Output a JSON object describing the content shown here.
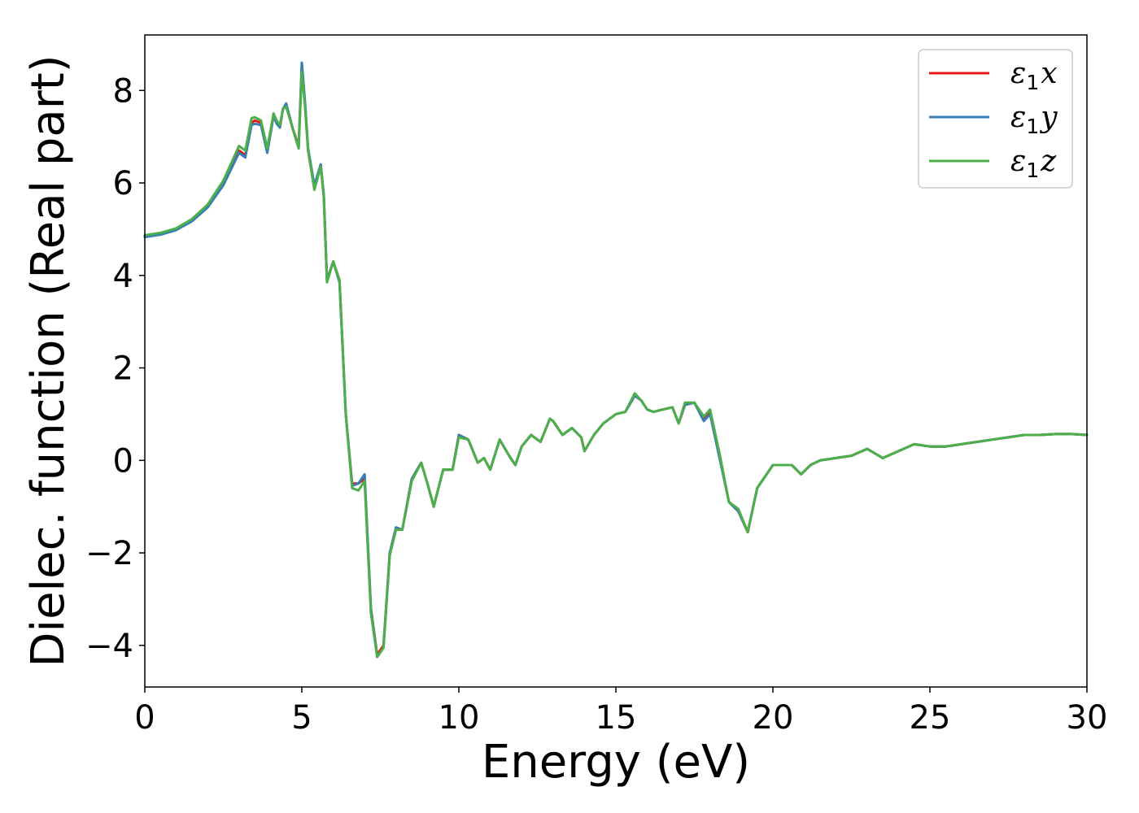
{
  "chart_data": {
    "type": "line",
    "title": "",
    "xlabel": "Energy (eV)",
    "ylabel": "Dielec. function (Real part)",
    "xlim": [
      0,
      30
    ],
    "ylim": [
      -4.9,
      9.2
    ],
    "xticks": [
      0,
      5,
      10,
      15,
      20,
      25,
      30
    ],
    "xtick_labels": [
      "0",
      "5",
      "10",
      "15",
      "20",
      "25",
      "30"
    ],
    "yticks": [
      -4,
      -2,
      0,
      2,
      4,
      6,
      8
    ],
    "ytick_labels": [
      "−4",
      "−2",
      "0",
      "2",
      "4",
      "6",
      "8"
    ],
    "grid": false,
    "legend_position": "top-right",
    "series": [
      {
        "name": "ε1x",
        "legend_base": "ε",
        "legend_sub": "1",
        "legend_var": "x",
        "color": "#e41a1c",
        "x": [
          0,
          0.5,
          1.0,
          1.5,
          2.0,
          2.5,
          3.0,
          3.2,
          3.4,
          3.5,
          3.7,
          3.9,
          4.1,
          4.2,
          4.3,
          4.4,
          4.5,
          4.7,
          4.9,
          5.0,
          5.1,
          5.2,
          5.4,
          5.6,
          5.7,
          5.8,
          6.0,
          6.2,
          6.4,
          6.6,
          6.8,
          7.0,
          7.2,
          7.4,
          7.6,
          7.8,
          8.0,
          8.2,
          8.5,
          8.8,
          9.0,
          9.2,
          9.5,
          9.8,
          10.0,
          10.3,
          10.6,
          10.8,
          11.0,
          11.3,
          11.6,
          11.8,
          12.0,
          12.3,
          12.6,
          12.9,
          13.0,
          13.3,
          13.6,
          13.9,
          14.0,
          14.3,
          14.6,
          15.0,
          15.3,
          15.6,
          15.8,
          16.0,
          16.2,
          16.5,
          16.8,
          17.0,
          17.2,
          17.5,
          17.8,
          18.0,
          18.3,
          18.6,
          18.9,
          19.2,
          19.5,
          19.8,
          20.0,
          20.3,
          20.6,
          20.9,
          21.2,
          21.5,
          22.0,
          22.5,
          23.0,
          23.5,
          24.0,
          24.5,
          25.0,
          25.5,
          26.0,
          26.5,
          27.0,
          27.5,
          28.0,
          28.5,
          29.0,
          29.5,
          30.0
        ],
        "y": [
          4.85,
          4.9,
          5.0,
          5.2,
          5.5,
          6.0,
          6.7,
          6.6,
          7.3,
          7.35,
          7.3,
          6.7,
          7.5,
          7.3,
          7.2,
          7.6,
          7.7,
          7.2,
          6.8,
          8.55,
          7.7,
          6.7,
          5.9,
          6.4,
          5.7,
          3.9,
          4.3,
          3.9,
          1.0,
          -0.5,
          -0.5,
          -0.4,
          -3.2,
          -4.2,
          -4.0,
          -2.0,
          -1.45,
          -1.5,
          -0.4,
          -0.05,
          -0.5,
          -1.0,
          -0.2,
          -0.2,
          0.55,
          0.45,
          -0.05,
          0.05,
          -0.2,
          0.45,
          0.1,
          -0.1,
          0.3,
          0.55,
          0.4,
          0.9,
          0.85,
          0.55,
          0.7,
          0.5,
          0.2,
          0.55,
          0.8,
          1.0,
          1.05,
          1.4,
          1.3,
          1.1,
          1.05,
          1.1,
          1.15,
          0.8,
          1.2,
          1.25,
          0.9,
          1.05,
          0.1,
          -0.9,
          -1.1,
          -1.55,
          -0.6,
          -0.3,
          -0.1,
          -0.1,
          -0.1,
          -0.3,
          -0.1,
          0.0,
          0.05,
          0.1,
          0.25,
          0.05,
          0.2,
          0.35,
          0.3,
          0.3,
          0.35,
          0.4,
          0.45,
          0.5,
          0.55,
          0.55,
          0.57,
          0.57,
          0.55
        ]
      },
      {
        "name": "ε1y",
        "legend_base": "ε",
        "legend_sub": "1",
        "legend_var": "y",
        "color": "#377eb8",
        "x": [
          0,
          0.5,
          1.0,
          1.5,
          2.0,
          2.5,
          3.0,
          3.2,
          3.4,
          3.5,
          3.7,
          3.9,
          4.1,
          4.2,
          4.3,
          4.4,
          4.5,
          4.7,
          4.9,
          5.0,
          5.1,
          5.2,
          5.4,
          5.6,
          5.7,
          5.8,
          6.0,
          6.2,
          6.4,
          6.6,
          6.8,
          7.0,
          7.2,
          7.4,
          7.6,
          7.8,
          8.0,
          8.2,
          8.5,
          8.8,
          9.0,
          9.2,
          9.5,
          9.8,
          10.0,
          10.3,
          10.6,
          10.8,
          11.0,
          11.3,
          11.6,
          11.8,
          12.0,
          12.3,
          12.6,
          12.9,
          13.0,
          13.3,
          13.6,
          13.9,
          14.0,
          14.3,
          14.6,
          15.0,
          15.3,
          15.6,
          15.8,
          16.0,
          16.2,
          16.5,
          16.8,
          17.0,
          17.2,
          17.5,
          17.8,
          18.0,
          18.3,
          18.6,
          18.9,
          19.2,
          19.5,
          19.8,
          20.0,
          20.3,
          20.6,
          20.9,
          21.2,
          21.5,
          22.0,
          22.5,
          23.0,
          23.5,
          24.0,
          24.5,
          25.0,
          25.5,
          26.0,
          26.5,
          27.0,
          27.5,
          28.0,
          28.5,
          29.0,
          29.5,
          30.0
        ],
        "y": [
          4.83,
          4.88,
          4.98,
          5.17,
          5.47,
          5.95,
          6.65,
          6.55,
          7.25,
          7.28,
          7.25,
          6.65,
          7.45,
          7.28,
          7.2,
          7.6,
          7.72,
          7.2,
          6.75,
          8.6,
          7.75,
          6.75,
          5.95,
          6.4,
          5.75,
          3.9,
          4.3,
          3.85,
          1.0,
          -0.55,
          -0.5,
          -0.3,
          -3.2,
          -4.25,
          -4.05,
          -2.0,
          -1.45,
          -1.5,
          -0.4,
          -0.05,
          -0.5,
          -1.0,
          -0.2,
          -0.2,
          0.55,
          0.45,
          -0.05,
          0.05,
          -0.2,
          0.45,
          0.1,
          -0.1,
          0.3,
          0.55,
          0.4,
          0.9,
          0.85,
          0.55,
          0.7,
          0.5,
          0.2,
          0.55,
          0.8,
          1.0,
          1.05,
          1.4,
          1.3,
          1.1,
          1.05,
          1.1,
          1.15,
          0.8,
          1.2,
          1.25,
          0.85,
          1.0,
          0.05,
          -0.9,
          -1.1,
          -1.55,
          -0.6,
          -0.3,
          -0.1,
          -0.1,
          -0.1,
          -0.3,
          -0.1,
          0.0,
          0.05,
          0.1,
          0.25,
          0.05,
          0.2,
          0.35,
          0.3,
          0.3,
          0.35,
          0.4,
          0.45,
          0.5,
          0.55,
          0.55,
          0.57,
          0.57,
          0.55
        ]
      },
      {
        "name": "ε1z",
        "legend_base": "ε",
        "legend_sub": "1",
        "legend_var": "z",
        "color": "#4daf4a",
        "x": [
          0,
          0.5,
          1.0,
          1.5,
          2.0,
          2.5,
          3.0,
          3.2,
          3.4,
          3.5,
          3.7,
          3.9,
          4.1,
          4.2,
          4.3,
          4.4,
          4.5,
          4.7,
          4.9,
          5.0,
          5.1,
          5.2,
          5.4,
          5.6,
          5.7,
          5.8,
          6.0,
          6.2,
          6.4,
          6.6,
          6.8,
          7.0,
          7.2,
          7.4,
          7.6,
          7.8,
          8.0,
          8.2,
          8.5,
          8.8,
          9.0,
          9.2,
          9.5,
          9.8,
          10.0,
          10.3,
          10.6,
          10.8,
          11.0,
          11.3,
          11.6,
          11.8,
          12.0,
          12.3,
          12.6,
          12.9,
          13.0,
          13.3,
          13.6,
          13.9,
          14.0,
          14.3,
          14.6,
          15.0,
          15.3,
          15.6,
          15.8,
          16.0,
          16.2,
          16.5,
          16.8,
          17.0,
          17.2,
          17.5,
          17.8,
          18.0,
          18.3,
          18.6,
          18.9,
          19.2,
          19.5,
          19.8,
          20.0,
          20.3,
          20.6,
          20.9,
          21.2,
          21.5,
          22.0,
          22.5,
          23.0,
          23.5,
          24.0,
          24.5,
          25.0,
          25.5,
          26.0,
          26.5,
          27.0,
          27.5,
          28.0,
          28.5,
          29.0,
          29.5,
          30.0
        ],
        "y": [
          4.87,
          4.92,
          5.02,
          5.22,
          5.53,
          6.05,
          6.8,
          6.7,
          7.4,
          7.42,
          7.35,
          6.75,
          7.5,
          7.35,
          7.25,
          7.6,
          7.65,
          7.2,
          6.75,
          8.4,
          7.65,
          6.7,
          5.85,
          6.35,
          5.7,
          3.85,
          4.3,
          3.9,
          1.0,
          -0.6,
          -0.65,
          -0.45,
          -3.3,
          -4.25,
          -4.05,
          -2.05,
          -1.5,
          -1.5,
          -0.45,
          -0.05,
          -0.5,
          -1.0,
          -0.2,
          -0.2,
          0.5,
          0.45,
          -0.05,
          0.05,
          -0.2,
          0.45,
          0.1,
          -0.1,
          0.3,
          0.55,
          0.4,
          0.9,
          0.85,
          0.55,
          0.7,
          0.5,
          0.2,
          0.55,
          0.8,
          1.0,
          1.05,
          1.45,
          1.3,
          1.1,
          1.05,
          1.1,
          1.15,
          0.8,
          1.25,
          1.25,
          0.95,
          1.1,
          0.15,
          -0.9,
          -1.05,
          -1.55,
          -0.6,
          -0.3,
          -0.1,
          -0.1,
          -0.1,
          -0.3,
          -0.1,
          0.0,
          0.05,
          0.1,
          0.25,
          0.05,
          0.2,
          0.35,
          0.3,
          0.3,
          0.35,
          0.4,
          0.45,
          0.5,
          0.55,
          0.55,
          0.57,
          0.57,
          0.55
        ]
      }
    ]
  }
}
